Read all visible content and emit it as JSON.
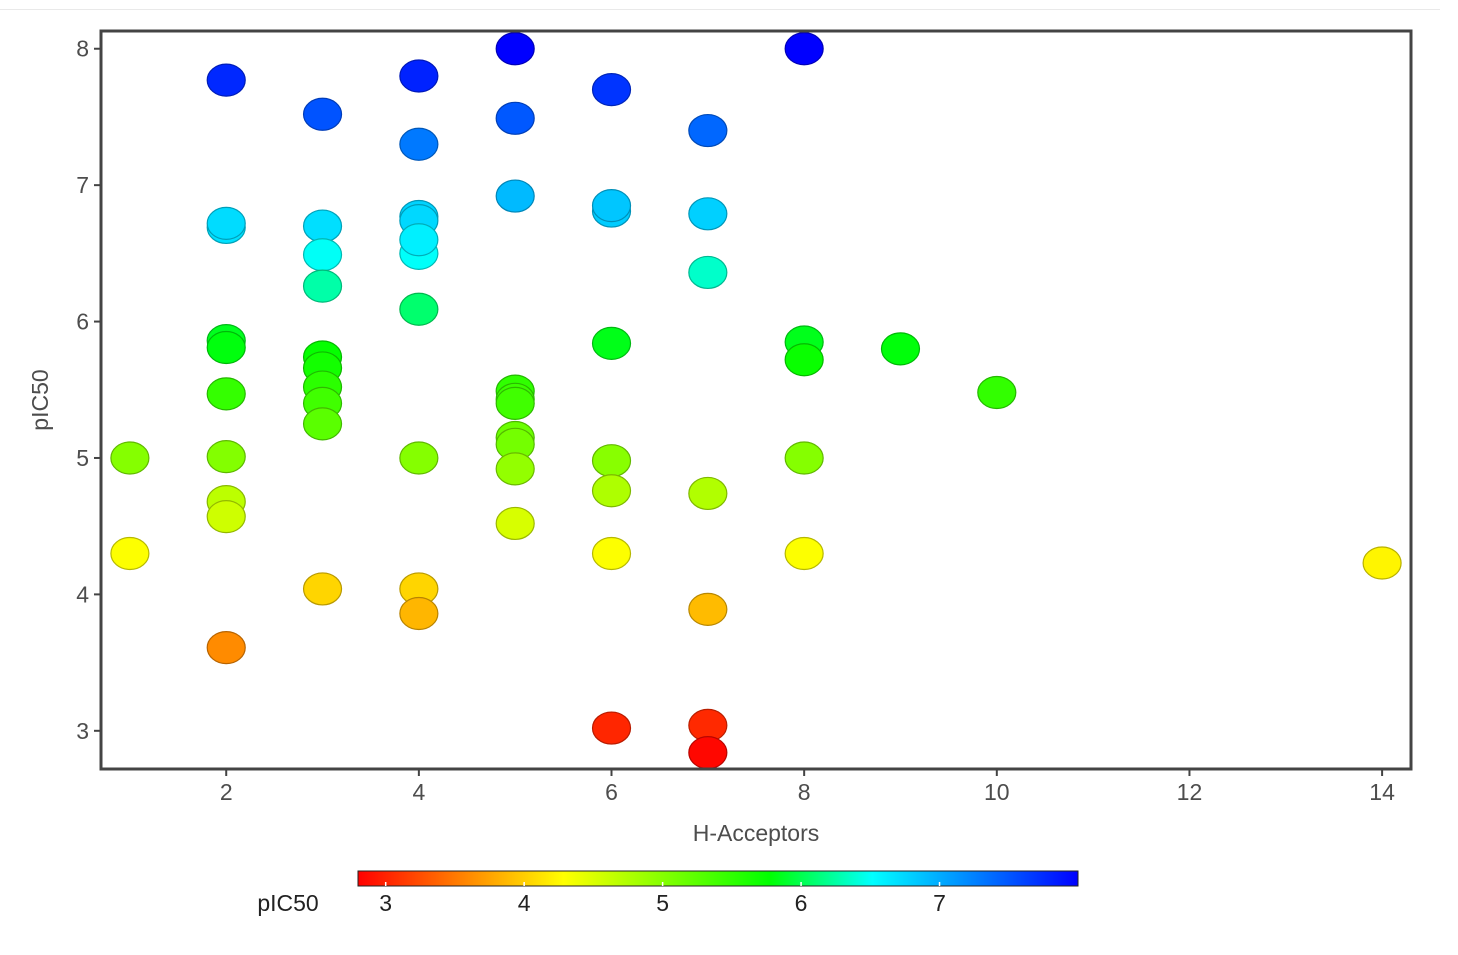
{
  "chart_data": {
    "type": "scatter",
    "title": "",
    "xlabel": "H-Acceptors",
    "ylabel": "pIC50",
    "xlim": [
      0.7,
      14.3
    ],
    "ylim": [
      2.72,
      8.13
    ],
    "x_ticks": [
      2,
      4,
      6,
      8,
      10,
      12,
      14
    ],
    "y_ticks": [
      3,
      4,
      5,
      6,
      7,
      8
    ],
    "grid": false,
    "legend": {
      "type": "colorbar",
      "title": "pIC50",
      "position": "bottom",
      "range": [
        2.8,
        8.0
      ],
      "ticks": [
        3,
        4,
        5,
        6,
        7
      ],
      "colormap": [
        "#ff0000",
        "#ff8000",
        "#ffff00",
        "#80ff00",
        "#00ff00",
        "#00ffff",
        "#0080ff",
        "#0000ff"
      ]
    },
    "series": [
      {
        "points": [
          {
            "x": 1,
            "y": 5.0
          },
          {
            "x": 1,
            "y": 4.3
          },
          {
            "x": 2,
            "y": 7.77
          },
          {
            "x": 2,
            "y": 6.69
          },
          {
            "x": 2,
            "y": 6.72
          },
          {
            "x": 2,
            "y": 5.86
          },
          {
            "x": 2,
            "y": 5.81
          },
          {
            "x": 2,
            "y": 5.47
          },
          {
            "x": 2,
            "y": 5.01
          },
          {
            "x": 2,
            "y": 4.68
          },
          {
            "x": 2,
            "y": 4.57
          },
          {
            "x": 2,
            "y": 3.61
          },
          {
            "x": 3,
            "y": 7.52
          },
          {
            "x": 3,
            "y": 6.7
          },
          {
            "x": 3,
            "y": 6.49
          },
          {
            "x": 3,
            "y": 6.26
          },
          {
            "x": 3,
            "y": 5.74
          },
          {
            "x": 3,
            "y": 5.66
          },
          {
            "x": 3,
            "y": 5.52
          },
          {
            "x": 3,
            "y": 5.4
          },
          {
            "x": 3,
            "y": 5.25
          },
          {
            "x": 3,
            "y": 4.04
          },
          {
            "x": 4,
            "y": 7.8
          },
          {
            "x": 4,
            "y": 7.3
          },
          {
            "x": 4,
            "y": 6.77
          },
          {
            "x": 4,
            "y": 6.74
          },
          {
            "x": 4,
            "y": 6.5
          },
          {
            "x": 4,
            "y": 6.6
          },
          {
            "x": 4,
            "y": 6.09
          },
          {
            "x": 4,
            "y": 5.0
          },
          {
            "x": 4,
            "y": 4.04
          },
          {
            "x": 4,
            "y": 3.86
          },
          {
            "x": 5,
            "y": 8.0
          },
          {
            "x": 5,
            "y": 7.49
          },
          {
            "x": 5,
            "y": 6.92
          },
          {
            "x": 5,
            "y": 5.49
          },
          {
            "x": 5,
            "y": 5.43
          },
          {
            "x": 5,
            "y": 5.4
          },
          {
            "x": 5,
            "y": 5.15
          },
          {
            "x": 5,
            "y": 5.1
          },
          {
            "x": 5,
            "y": 4.92
          },
          {
            "x": 5,
            "y": 4.52
          },
          {
            "x": 6,
            "y": 7.7
          },
          {
            "x": 6,
            "y": 6.81
          },
          {
            "x": 6,
            "y": 6.85
          },
          {
            "x": 6,
            "y": 5.84
          },
          {
            "x": 6,
            "y": 4.98
          },
          {
            "x": 6,
            "y": 4.76
          },
          {
            "x": 6,
            "y": 4.3
          },
          {
            "x": 6,
            "y": 3.02
          },
          {
            "x": 7,
            "y": 7.4
          },
          {
            "x": 7,
            "y": 6.79
          },
          {
            "x": 7,
            "y": 6.36
          },
          {
            "x": 7,
            "y": 4.74
          },
          {
            "x": 7,
            "y": 3.89
          },
          {
            "x": 7,
            "y": 3.04
          },
          {
            "x": 7,
            "y": 2.84
          },
          {
            "x": 8,
            "y": 8.0
          },
          {
            "x": 8,
            "y": 5.85
          },
          {
            "x": 8,
            "y": 5.72
          },
          {
            "x": 8,
            "y": 5.0
          },
          {
            "x": 8,
            "y": 4.3
          },
          {
            "x": 9,
            "y": 5.8
          },
          {
            "x": 10,
            "y": 5.48
          },
          {
            "x": 14,
            "y": 4.23
          }
        ]
      }
    ]
  }
}
